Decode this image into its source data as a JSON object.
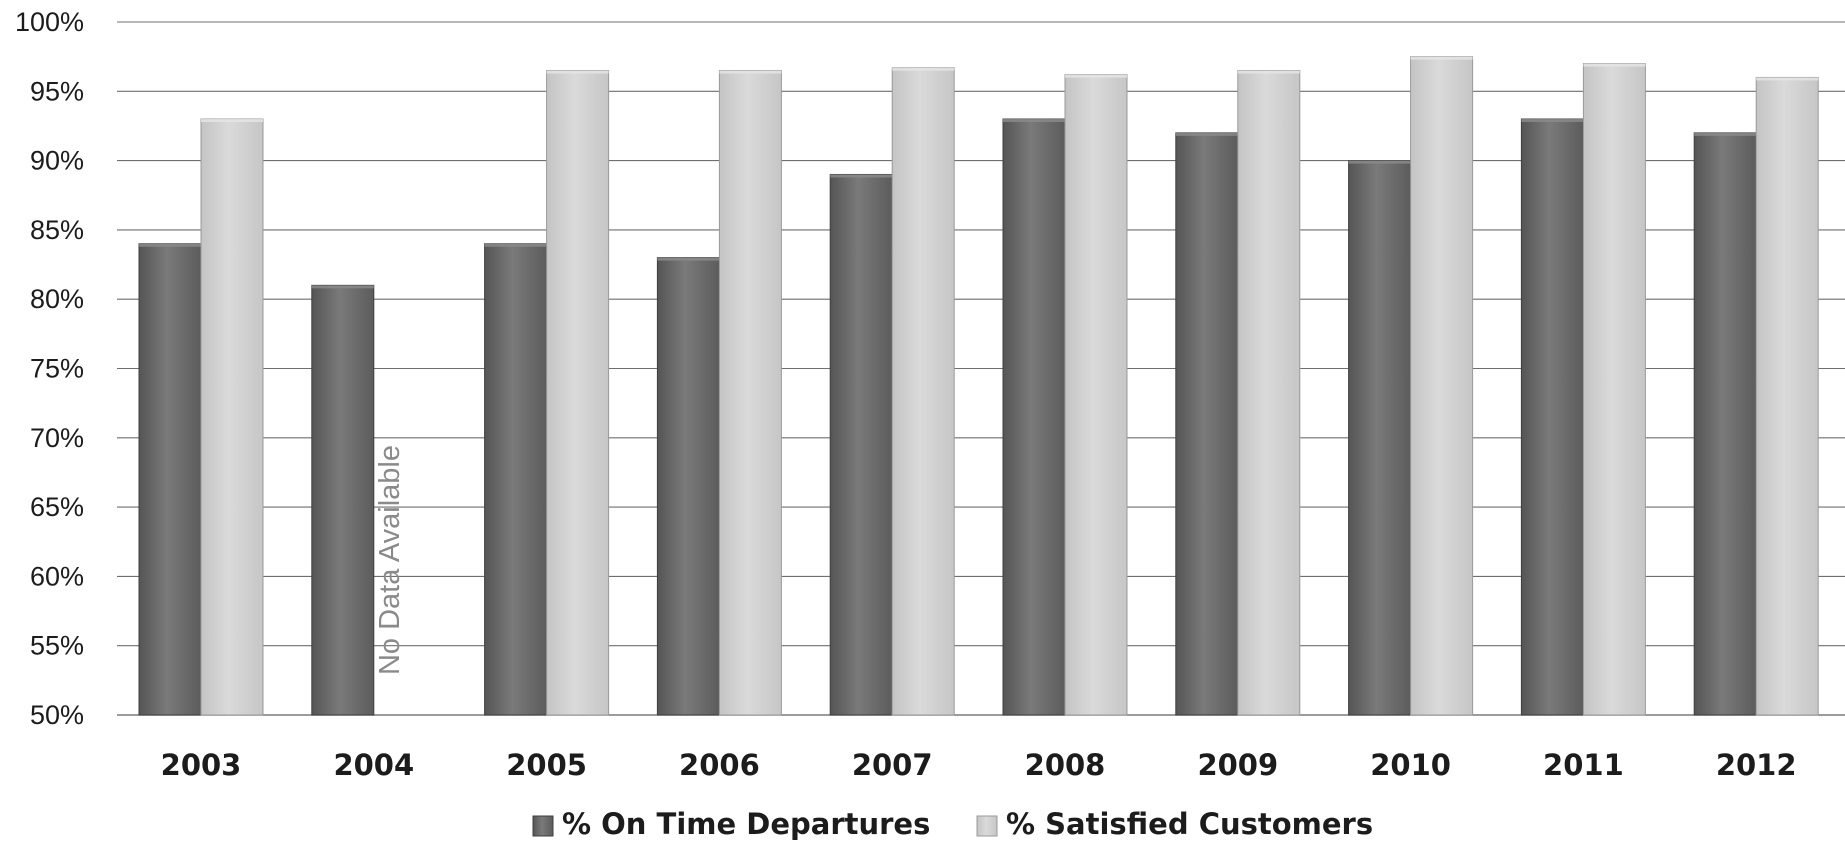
{
  "chart_data": {
    "type": "bar",
    "title": "",
    "xlabel": "",
    "ylabel": "",
    "categories": [
      "2003",
      "2004",
      "2005",
      "2006",
      "2007",
      "2008",
      "2009",
      "2010",
      "2011",
      "2012"
    ],
    "series": [
      {
        "name": "% On Time Departures",
        "values": [
          84,
          81,
          84,
          83,
          89,
          93,
          92,
          90,
          93,
          92
        ],
        "color": "#6b6b6b"
      },
      {
        "name": "% Satisfied Customers",
        "values": [
          93,
          null,
          96.5,
          96.5,
          96.7,
          96.2,
          96.5,
          97.5,
          97,
          96
        ],
        "color": "#cdcdcd"
      }
    ],
    "ylim": [
      50,
      100
    ],
    "yticks": [
      "50%",
      "55%",
      "60%",
      "65%",
      "70%",
      "75%",
      "80%",
      "85%",
      "90%",
      "95%",
      "100%"
    ],
    "ytick_values": [
      50,
      55,
      60,
      65,
      70,
      75,
      80,
      85,
      90,
      95,
      100
    ],
    "grid": true,
    "legend_position": "bottom",
    "annotations": [
      {
        "text": "No Data Available",
        "category": "2004",
        "series": "% Satisfied Customers"
      }
    ]
  }
}
